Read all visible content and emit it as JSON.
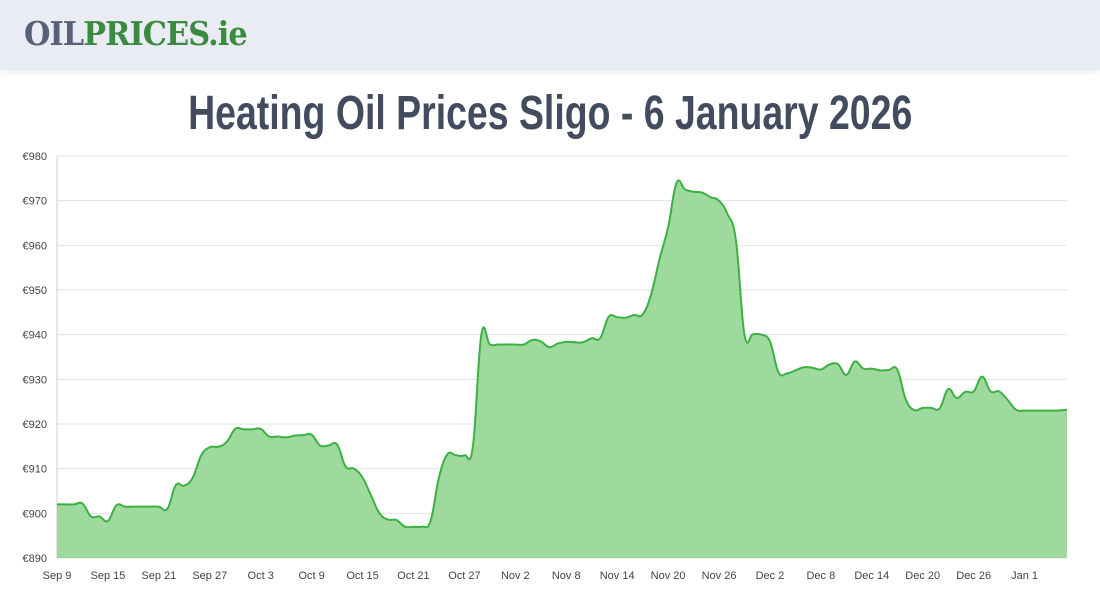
{
  "header": {
    "logo_part1": "OIL",
    "logo_part2": "PRICES.ie"
  },
  "title": "Heating Oil Prices Sligo - 6 January 2026",
  "colors": {
    "fill": "#91d591",
    "line": "#3cb043",
    "grid": "#e2e2e2"
  },
  "chart_data": {
    "type": "area",
    "title": "Heating Oil Prices Sligo - 6 January 2026",
    "xlabel": "",
    "ylabel": "",
    "ylim": [
      890,
      980
    ],
    "yticks": [
      "€890",
      "€900",
      "€910",
      "€920",
      "€930",
      "€940",
      "€950",
      "€960",
      "€970",
      "€980"
    ],
    "xticks": [
      "Sep 9",
      "Sep 15",
      "Sep 21",
      "Sep 27",
      "Oct 3",
      "Oct 9",
      "Oct 15",
      "Oct 21",
      "Oct 27",
      "Nov 2",
      "Nov 8",
      "Nov 14",
      "Nov 20",
      "Nov 26",
      "Dec 2",
      "Dec 8",
      "Dec 14",
      "Dec 20",
      "Dec 26",
      "Jan 1"
    ],
    "x_range": [
      "Sep 9",
      "Jan 6"
    ],
    "grid": true,
    "values": [
      902,
      902,
      902,
      902.2,
      899.3,
      899.3,
      898.3,
      901.8,
      901.5,
      901.5,
      901.5,
      901.5,
      901.5,
      901,
      906.3,
      906.2,
      908,
      913,
      914.8,
      914.9,
      916,
      918.9,
      918.8,
      918.8,
      918.9,
      917.2,
      917.2,
      917,
      917.4,
      917.5,
      917.6,
      915.2,
      915.2,
      915.4,
      910.5,
      910,
      908,
      904,
      900,
      898.6,
      898.5,
      897,
      897,
      897,
      898.2,
      908,
      913.2,
      913,
      913,
      915,
      940,
      937.8,
      937.8,
      937.8,
      937.8,
      937.8,
      938.8,
      938.5,
      937.2,
      938,
      938.4,
      938.3,
      938.3,
      939.2,
      939.2,
      944,
      943.9,
      943.8,
      944.4,
      944.5,
      949,
      957,
      964,
      974,
      972.5,
      972,
      971.8,
      970.8,
      970,
      967,
      961,
      940,
      940.1,
      940,
      938.5,
      931.6,
      931.3,
      932,
      932.7,
      932.6,
      932.2,
      933.3,
      933.4,
      931,
      934,
      932.4,
      932.4,
      932,
      932.1,
      932.2,
      925.5,
      923.1,
      923.6,
      923.6,
      923.5,
      927.8,
      925.8,
      927.2,
      927.3,
      930.6,
      927.3,
      927.3,
      925.4,
      923.2,
      923,
      923,
      923,
      923,
      923,
      923.2
    ]
  }
}
